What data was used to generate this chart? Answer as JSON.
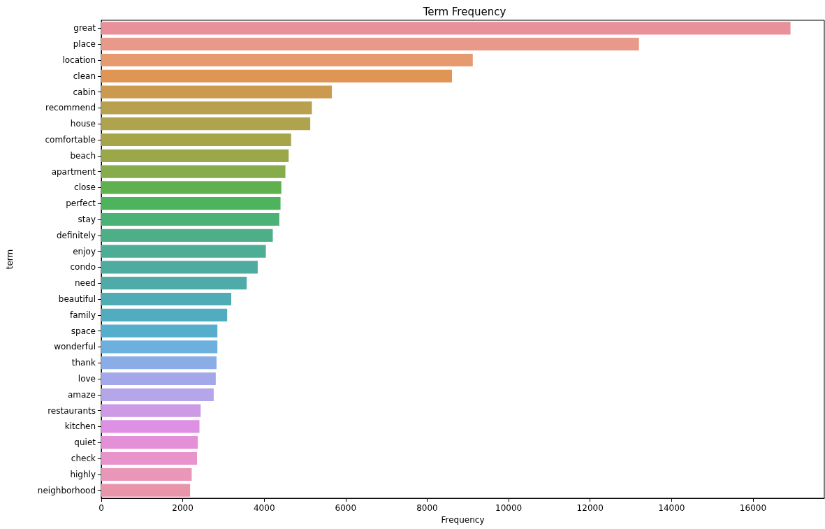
{
  "chart_data": {
    "type": "bar",
    "orientation": "horizontal",
    "title": "Term Frequency",
    "xlabel": "Frequency",
    "ylabel": "term",
    "categories": [
      "great",
      "place",
      "location",
      "clean",
      "cabin",
      "recommend",
      "house",
      "comfortable",
      "beach",
      "apartment",
      "close",
      "perfect",
      "stay",
      "definitely",
      "enjoy",
      "condo",
      "need",
      "beautiful",
      "family",
      "space",
      "wonderful",
      "thank",
      "love",
      "amaze",
      "restaurants",
      "kitchen",
      "quiet",
      "check",
      "highly",
      "neighborhood"
    ],
    "values": [
      16920,
      13200,
      9120,
      8610,
      5660,
      5170,
      5130,
      4660,
      4600,
      4520,
      4420,
      4400,
      4370,
      4210,
      4040,
      3840,
      3570,
      3190,
      3090,
      2850,
      2850,
      2830,
      2810,
      2760,
      2440,
      2410,
      2370,
      2350,
      2220,
      2180
    ],
    "colors": [
      "#e8919a",
      "#e8998a",
      "#e59a70",
      "#df9553",
      "#cc9a4f",
      "#b8a04f",
      "#b0a34e",
      "#a7a54a",
      "#9aa84a",
      "#86ac4b",
      "#5fb14f",
      "#4db35c",
      "#4cb174",
      "#4caf87",
      "#4dae96",
      "#4dab9f",
      "#4faba8",
      "#50acb4",
      "#52acbf",
      "#56aecd",
      "#6cb0e0",
      "#8aade8",
      "#a3a8ea",
      "#b5a5e9",
      "#cd9ae6",
      "#de91e4",
      "#e58fd9",
      "#e893cc",
      "#e996b9",
      "#e895ac"
    ],
    "xlim": [
      0,
      17750
    ],
    "xticks": [
      0,
      2000,
      4000,
      6000,
      8000,
      10000,
      12000,
      14000,
      16000
    ],
    "grid": false
  }
}
